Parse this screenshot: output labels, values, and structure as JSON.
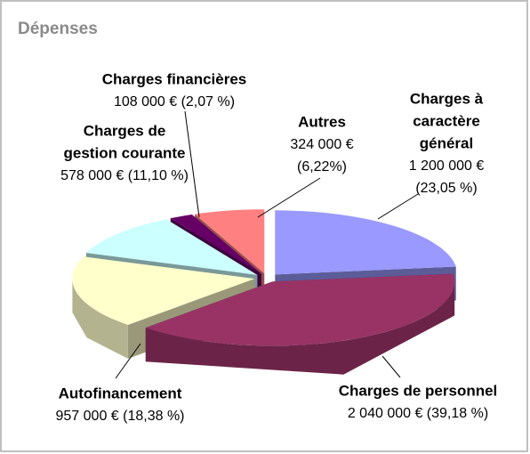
{
  "chart_data": {
    "type": "pie3d",
    "title": "Dépenses",
    "categories": [
      [
        "Charges à",
        "caractère",
        "général"
      ],
      [
        "Charges de personnel"
      ],
      [
        "Autofinancement"
      ],
      [
        "Charges de",
        "gestion courante"
      ],
      [
        "Charges financières"
      ],
      [
        "Autres"
      ]
    ],
    "values": [
      1200000,
      2040000,
      957000,
      578000,
      108000,
      324000
    ],
    "value_labels": [
      [
        "1 200 000 €",
        "(23,05 %)"
      ],
      [
        "2 040 000 € (39,18 %)"
      ],
      [
        "957 000 € (18,38 %)"
      ],
      [
        "578 000 € (11,10 %)"
      ],
      [
        "108 000 € (2,07 %)"
      ],
      [
        "324 000 €",
        "(6,22%)"
      ]
    ],
    "colors": [
      "#9999ff",
      "#993366",
      "#ffffcc",
      "#ccffff",
      "#660066",
      "#ff8080"
    ]
  }
}
